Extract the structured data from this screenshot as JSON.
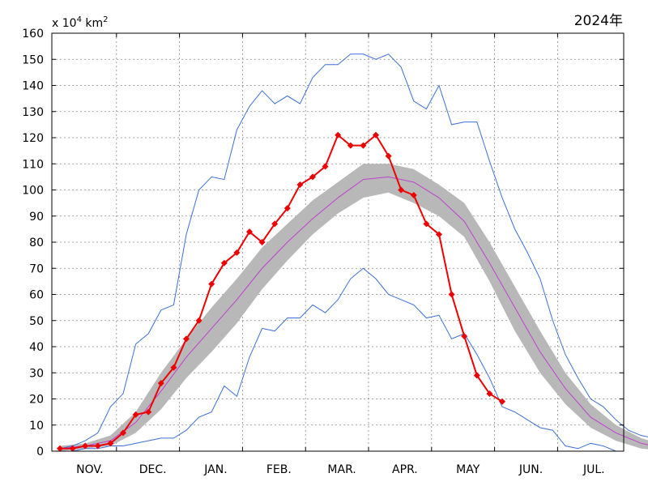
{
  "page": {
    "year_label": "2024年",
    "unit": {
      "prefix": "x 10",
      "exp1": "4",
      "mid": " km",
      "exp2": "2"
    }
  },
  "chart_data": {
    "type": "line",
    "title": "2024年",
    "xlabel": "",
    "ylabel": "x 10^4 km^2",
    "ylim": [
      0,
      160
    ],
    "y_ticks": [
      0,
      10,
      20,
      30,
      40,
      50,
      60,
      70,
      80,
      90,
      100,
      110,
      120,
      130,
      140,
      150,
      160
    ],
    "x_categories": [
      "NOV.",
      "DEC.",
      "JAN.",
      "FEB.",
      "MAR.",
      "APR.",
      "MAY",
      "JUN.",
      "JUL."
    ],
    "x_period_count": 46,
    "grid": true,
    "colors": {
      "max_min": "#3a6fd8",
      "mean": "#c040d0",
      "band": "#b8b8b8",
      "current": "#ee0000"
    },
    "max_series": {
      "x": [
        0,
        1,
        2,
        3,
        4,
        5,
        6,
        7,
        8,
        9,
        10,
        11,
        12,
        13,
        14,
        15,
        16,
        17,
        18,
        19,
        20,
        21,
        22,
        23,
        24,
        25,
        26,
        27,
        28,
        29,
        30,
        31,
        32,
        33,
        34,
        35,
        36,
        37,
        38,
        39,
        40,
        41,
        42,
        43,
        44,
        45,
        46
      ],
      "values": [
        1,
        2,
        4,
        7,
        17,
        22,
        41,
        45,
        54,
        56,
        83,
        100,
        105,
        104,
        123,
        132,
        138,
        133,
        136,
        133,
        143,
        148,
        148,
        152,
        152,
        150,
        152,
        147,
        134,
        131,
        140,
        125,
        126,
        126,
        111,
        97,
        85,
        76,
        66,
        50,
        37,
        28,
        20,
        17,
        12,
        8,
        6
      ]
    },
    "max_series_tail": {
      "x": [
        47,
        48,
        49,
        50,
        51,
        52,
        53,
        54,
        55,
        56,
        57,
        58,
        59,
        60,
        61,
        62,
        63
      ],
      "values": [
        5,
        4,
        4,
        3,
        2,
        2,
        1,
        0,
        0,
        0,
        0,
        0,
        0,
        0,
        0,
        0,
        0
      ]
    },
    "min_series": {
      "x": [
        0,
        1,
        2,
        3,
        4,
        5,
        6,
        7,
        8,
        9,
        10,
        11,
        12,
        13,
        14,
        15,
        16,
        17,
        18,
        19,
        20,
        21,
        22,
        23,
        24,
        25,
        26,
        27,
        28,
        29,
        30,
        31,
        32,
        33,
        34,
        35,
        36,
        37,
        38,
        39,
        40,
        41,
        42,
        43,
        44
      ],
      "values": [
        0,
        0,
        1,
        1,
        2,
        2,
        3,
        4,
        5,
        5,
        8,
        13,
        15,
        25,
        21,
        36,
        47,
        46,
        51,
        51,
        56,
        53,
        58,
        66,
        70,
        66,
        60,
        58,
        56,
        51,
        52,
        43,
        45,
        37,
        28,
        17,
        15,
        12,
        9,
        8,
        2,
        1,
        3,
        2,
        0
      ]
    },
    "mean_series": {
      "x": [
        0,
        2,
        4,
        6,
        8,
        10,
        12,
        14,
        16,
        18,
        20,
        22,
        24,
        26,
        28,
        30,
        32,
        34,
        36,
        38,
        40,
        42,
        44,
        46,
        48,
        50
      ],
      "values": [
        1,
        2,
        4,
        11,
        23,
        36,
        47,
        58,
        70,
        80,
        89,
        97,
        104,
        105,
        103,
        97,
        88,
        72,
        55,
        38,
        24,
        13,
        7,
        3,
        1,
        0
      ]
    },
    "band_upper": [
      2,
      3,
      6,
      15,
      30,
      43,
      55,
      66,
      78,
      87,
      96,
      103,
      110,
      110,
      108,
      102,
      95,
      80,
      63,
      46,
      30,
      18,
      10,
      5,
      2,
      1
    ],
    "band_lower": [
      0,
      1,
      2,
      7,
      16,
      28,
      38,
      49,
      62,
      73,
      83,
      91,
      97,
      99,
      95,
      90,
      82,
      65,
      46,
      30,
      18,
      9,
      4,
      1,
      0,
      0
    ],
    "current_series": {
      "name": "",
      "x": [
        0,
        1,
        2,
        3,
        4,
        5,
        6,
        7,
        8,
        9,
        10,
        11,
        12,
        13,
        14,
        15,
        16,
        17,
        18,
        19,
        20,
        21,
        22,
        23,
        24,
        25,
        26,
        27,
        28,
        29,
        30,
        31,
        32,
        33,
        34,
        35
      ],
      "values": [
        1,
        1,
        2,
        2,
        3,
        7,
        14,
        15,
        26,
        32,
        43,
        50,
        64,
        72,
        76,
        84,
        80,
        87,
        93,
        102,
        105,
        109,
        121,
        117,
        117,
        121,
        113,
        100,
        98,
        87,
        83,
        60,
        44,
        29,
        22,
        19
      ]
    }
  }
}
